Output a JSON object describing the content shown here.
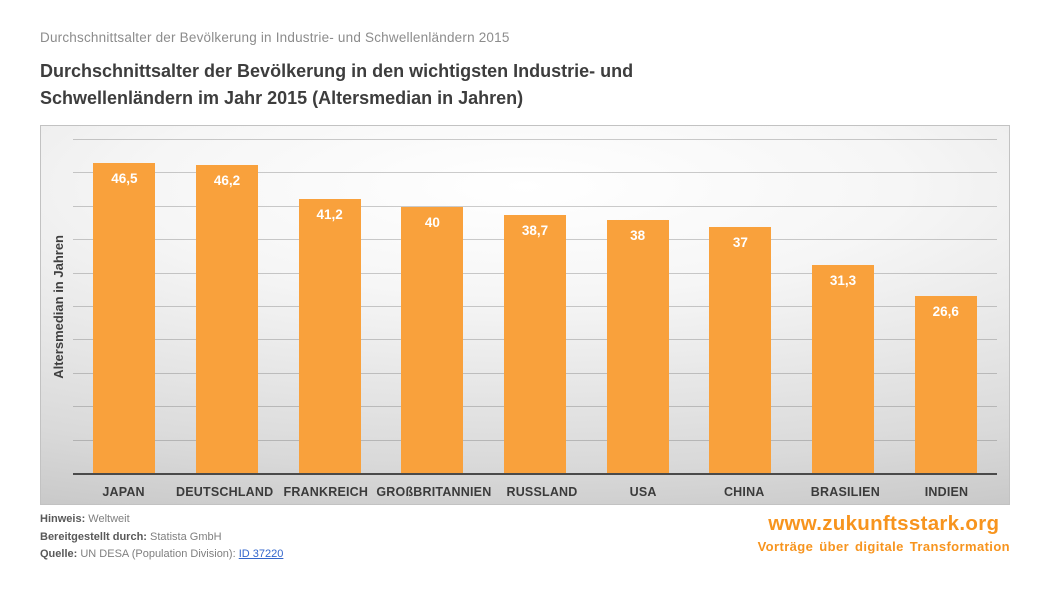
{
  "header": {
    "kicker": "Durchschnittsalter der Bevölkerung in Industrie- und Schwellenländern 2015",
    "title": "Durchschnittsalter der Bevölkerung in den wichtigsten Industrie- und Schwellenländern im Jahr 2015 (Altersmedian in Jahren)"
  },
  "chart_data": {
    "type": "bar",
    "categories": [
      "JAPAN",
      "DEUTSCHLAND",
      "FRANKREICH",
      "GROßBRITANNIEN",
      "RUSSLAND",
      "USA",
      "CHINA",
      "BRASILIEN",
      "INDIEN"
    ],
    "values": [
      46.5,
      46.2,
      41.2,
      40,
      38.7,
      38,
      37,
      31.3,
      26.6
    ],
    "value_labels": [
      "46,5",
      "46,2",
      "41,2",
      "40",
      "38,7",
      "38",
      "37",
      "31,3",
      "26,6"
    ],
    "title": "Durchschnittsalter der Bevölkerung in den wichtigsten Industrie- und Schwellenländern im Jahr 2015 (Altersmedian in Jahren)",
    "xlabel": "",
    "ylabel": "Altersmedian in Jahren",
    "ylim": [
      0,
      50
    ],
    "grid_step": 5,
    "grid": true,
    "legend": "none",
    "bar_color": "#F9A13C",
    "bar_value_color": "#FFFFFF"
  },
  "footer": {
    "note_label": "Hinweis:",
    "note_value": "Weltweit",
    "provider_label": "Bereitgestellt durch:",
    "provider_value": "Statista GmbH",
    "source_label": "Quelle:",
    "source_value": "UN DESA (Population Division):",
    "source_link": "ID 37220"
  },
  "brand": {
    "url": "www.zukunftsstark.org",
    "tagline": "Vorträge über digitale Transformation",
    "color": "#F7941E"
  }
}
